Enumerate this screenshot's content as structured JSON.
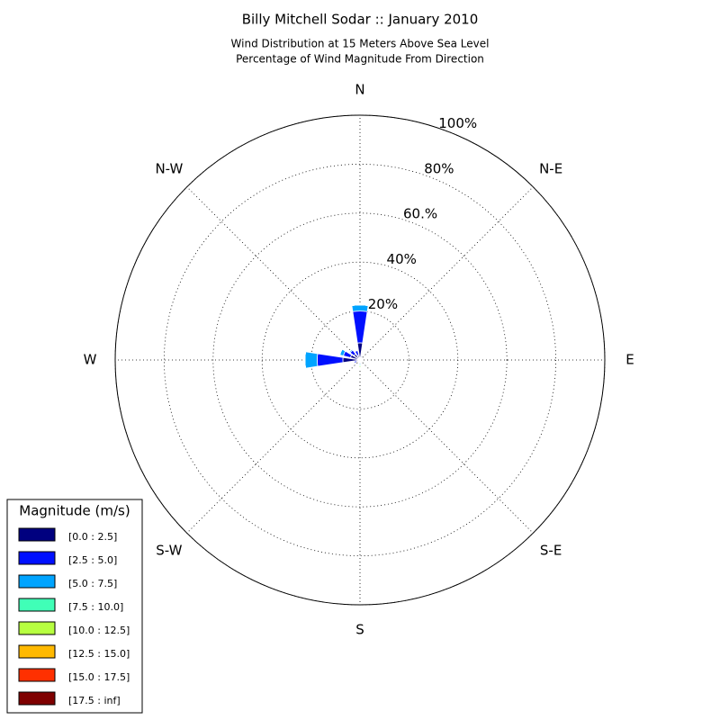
{
  "chart_data": {
    "type": "windrose",
    "title": "Billy Mitchell Sodar :: January 2010",
    "subtitle": [
      "Wind Distribution at 15 Meters Above Sea Level",
      "Percentage of Wind Magnitude From Direction"
    ],
    "categories": [
      "N",
      null,
      "N-E",
      null,
      "E",
      null,
      "S-E",
      null,
      "S",
      null,
      "S-W",
      null,
      "W",
      null,
      "N-W",
      null
    ],
    "ylim": [
      0,
      100
    ],
    "yticks": [
      {
        "value": 20,
        "label": "20%"
      },
      {
        "value": 40,
        "label": "40%"
      },
      {
        "value": 60,
        "label": "60.%"
      },
      {
        "value": 80,
        "label": "80%"
      },
      {
        "value": 100,
        "label": "100%"
      }
    ],
    "grid": true,
    "legend_title": "Magnitude (m/s)",
    "legend_position": "lower left",
    "series": [
      {
        "name": "[0.0 : 2.5]",
        "color": "#00007f",
        "values": [
          7,
          1,
          0.5,
          0.3,
          0.3,
          0.3,
          0.3,
          0.5,
          1,
          0.5,
          0.5,
          1.5,
          7,
          4,
          3,
          2
        ]
      },
      {
        "name": "[2.5 : 5.0]",
        "color": "#0010ff",
        "values": [
          13,
          0.5,
          0.2,
          0,
          0,
          0,
          0,
          0.2,
          0.5,
          0.2,
          0.3,
          1,
          10.5,
          3,
          2,
          2
        ]
      },
      {
        "name": "[5.0 : 7.5]",
        "color": "#00a4ff",
        "values": [
          2.5,
          0,
          0,
          0,
          0,
          0,
          0,
          0,
          0.5,
          0,
          0,
          0.3,
          5,
          1.5,
          0.5,
          0.3
        ]
      },
      {
        "name": "[7.5 : 10.0]",
        "color": "#40ffb7",
        "values": [
          0,
          0,
          0,
          0,
          0,
          0,
          0,
          0,
          0.5,
          0,
          0,
          0,
          0,
          0,
          0,
          0
        ]
      },
      {
        "name": "[10.0 : 12.5]",
        "color": "#b7ff40",
        "values": [
          0,
          0,
          0,
          0,
          0,
          0,
          0,
          0,
          0.5,
          0,
          0,
          0,
          0,
          0,
          0,
          0
        ]
      },
      {
        "name": "[12.5 : 15.0]",
        "color": "#ffb900",
        "values": [
          0,
          0,
          0,
          0,
          0,
          0,
          0,
          0,
          0.3,
          0,
          0,
          0,
          0,
          0,
          0,
          0
        ]
      },
      {
        "name": "[15.0 : 17.5]",
        "color": "#ff3000",
        "values": [
          0,
          0,
          0,
          0,
          0,
          0,
          0,
          0,
          0,
          0,
          0,
          0,
          0,
          0,
          0,
          0
        ]
      },
      {
        "name": "[17.5 : inf]",
        "color": "#7f0000",
        "values": [
          0,
          0,
          0,
          0,
          0,
          0,
          0,
          0,
          0,
          0,
          0,
          0,
          0,
          0,
          0,
          0
        ]
      }
    ]
  }
}
